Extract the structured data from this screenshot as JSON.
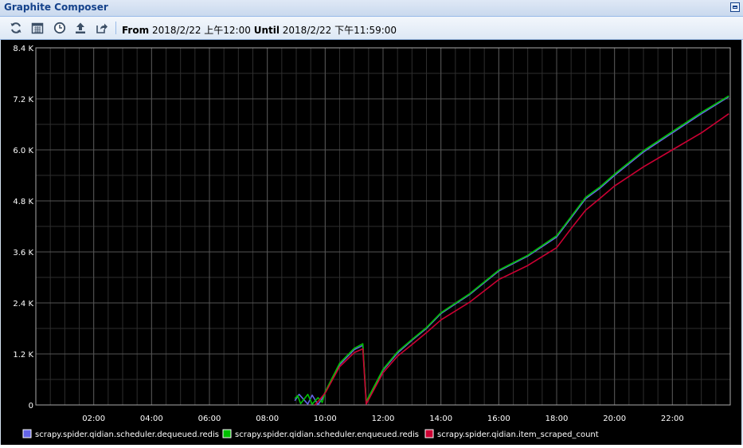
{
  "window": {
    "title": "Graphite Composer"
  },
  "toolbar": {
    "icons": [
      "refresh-icon",
      "calendar-icon",
      "clock-icon",
      "upload-icon",
      "share-icon"
    ],
    "from_label": "From",
    "from_value": "2018/2/22 上午12:00",
    "until_label": "Until",
    "until_value": "2018/2/22 下午11:59:00"
  },
  "colors": {
    "background": "#000000",
    "grid": "#555555",
    "grid_minor": "#2e2e2e",
    "text": "#ffffff"
  },
  "chart_data": {
    "type": "line",
    "xlabel": "",
    "ylabel": "",
    "x_unit": "hours",
    "xlim": [
      0,
      24
    ],
    "ylim": [
      0,
      8400
    ],
    "grid": true,
    "legend_placement": "bottom",
    "y_ticks": [
      0,
      1200,
      2400,
      3600,
      4800,
      6000,
      7200,
      8400
    ],
    "y_tick_labels": [
      "0",
      "1.2 K",
      "2.4 K",
      "3.6 K",
      "4.8 K",
      "6.0 K",
      "7.2 K",
      "8.4 K"
    ],
    "x_ticks": [
      2,
      4,
      6,
      8,
      10,
      12,
      14,
      16,
      18,
      20,
      22
    ],
    "x_tick_labels": [
      "02:00",
      "04:00",
      "06:00",
      "08:00",
      "10:00",
      "12:00",
      "14:00",
      "16:00",
      "18:00",
      "20:00",
      "22:00"
    ],
    "series": [
      {
        "name": "scrapy.spider.qidian.scheduler.dequeued.redis",
        "color": "#6464e6",
        "x": [
          8.95,
          9.1,
          9.4,
          9.55,
          9.75,
          9.9,
          10.0,
          10.5,
          11.0,
          11.3,
          11.42,
          12.0,
          12.5,
          13.0,
          13.5,
          14.0,
          15.0,
          16.0,
          17.0,
          18.0,
          18.5,
          19.0,
          19.5,
          20.0,
          21.0,
          22.0,
          23.0,
          23.95
        ],
        "y": [
          100,
          250,
          20,
          230,
          10,
          150,
          300,
          950,
          1300,
          1400,
          60,
          820,
          1220,
          1520,
          1800,
          2150,
          2600,
          3150,
          3500,
          3950,
          4400,
          4850,
          5100,
          5400,
          5950,
          6400,
          6850,
          7250
        ]
      },
      {
        "name": "scrapy.spider.qidian.scheduler.enqueued.redis",
        "color": "#00c000",
        "x": [
          8.95,
          9.05,
          9.15,
          9.4,
          9.55,
          9.75,
          9.9,
          10.0,
          10.5,
          11.0,
          11.3,
          11.42,
          12.0,
          12.5,
          13.0,
          13.5,
          14.0,
          15.0,
          16.0,
          17.0,
          18.0,
          18.5,
          19.0,
          19.5,
          20.0,
          21.0,
          22.0,
          23.0,
          23.95
        ],
        "y": [
          150,
          220,
          30,
          250,
          20,
          170,
          60,
          310,
          980,
          1330,
          1440,
          80,
          840,
          1250,
          1540,
          1820,
          2170,
          2620,
          3170,
          3520,
          3980,
          4430,
          4880,
          5130,
          5430,
          5980,
          6430,
          6880,
          7270
        ]
      },
      {
        "name": "scrapy.spider.qidian.item_scraped_count",
        "color": "#cc0033",
        "x": [
          9.65,
          10.0,
          10.5,
          11.0,
          11.3,
          11.42,
          12.0,
          12.5,
          13.0,
          13.5,
          14.0,
          15.0,
          16.0,
          17.0,
          18.0,
          18.5,
          19.0,
          19.5,
          20.0,
          21.0,
          22.0,
          23.0,
          23.95
        ],
        "y": [
          0,
          280,
          900,
          1230,
          1320,
          20,
          760,
          1150,
          1420,
          1700,
          2000,
          2420,
          2950,
          3280,
          3700,
          4150,
          4580,
          4860,
          5150,
          5600,
          6000,
          6400,
          6850
        ]
      }
    ]
  }
}
